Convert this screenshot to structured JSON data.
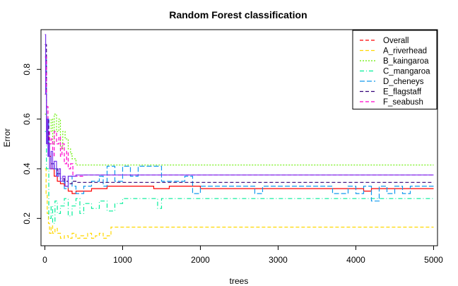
{
  "chart_data": {
    "type": "line",
    "title": "Random Forest classification",
    "xlabel": "trees",
    "ylabel": "Error",
    "xlim": [
      -50,
      5050
    ],
    "ylim": [
      0.09,
      0.96
    ],
    "x_ticks": [
      0,
      1000,
      2000,
      3000,
      4000,
      5000
    ],
    "y_ticks": [
      0.2,
      0.4,
      0.6,
      0.8
    ],
    "x_tick_labels": [
      "0",
      "1000",
      "2000",
      "3000",
      "4000",
      "5000"
    ],
    "y_tick_labels": [
      "0.2",
      "0.4",
      "0.6",
      "0.8"
    ],
    "grid": false,
    "legend_position": "top-right",
    "series": [
      {
        "name": "Overall",
        "color": "#ff0000",
        "dash": "solid",
        "legend_dash": "5,3",
        "x": [
          1,
          20,
          50,
          80,
          120,
          160,
          200,
          250,
          300,
          350,
          400,
          450,
          500,
          600,
          700,
          800,
          900,
          1000,
          1200,
          1400,
          1600,
          1800,
          2000,
          2500,
          3000,
          3500,
          4000,
          4100,
          4200,
          4300,
          4500,
          5000
        ],
        "y": [
          0.7,
          0.55,
          0.45,
          0.4,
          0.37,
          0.35,
          0.34,
          0.33,
          0.31,
          0.3,
          0.31,
          0.31,
          0.31,
          0.32,
          0.32,
          0.33,
          0.33,
          0.33,
          0.33,
          0.32,
          0.33,
          0.33,
          0.32,
          0.32,
          0.32,
          0.32,
          0.32,
          0.31,
          0.32,
          0.32,
          0.32,
          0.32
        ]
      },
      {
        "name": "A_riverhead",
        "color": "#ffd700",
        "dash": "5,3",
        "x": [
          1,
          15,
          30,
          45,
          60,
          80,
          100,
          130,
          160,
          200,
          250,
          300,
          350,
          400,
          450,
          500,
          550,
          600,
          650,
          700,
          750,
          800,
          850,
          1000,
          2000,
          3000,
          4000,
          5000
        ],
        "y": [
          0.4,
          0.3,
          0.22,
          0.18,
          0.14,
          0.17,
          0.14,
          0.16,
          0.14,
          0.12,
          0.13,
          0.12,
          0.14,
          0.12,
          0.13,
          0.12,
          0.14,
          0.12,
          0.13,
          0.14,
          0.12,
          0.13,
          0.165,
          0.165,
          0.165,
          0.165,
          0.165,
          0.165
        ]
      },
      {
        "name": "B_kaingaroa",
        "color": "#66ee00",
        "dash": "2,2",
        "x": [
          1,
          20,
          50,
          80,
          100,
          120,
          150,
          180,
          200,
          230,
          260,
          300,
          330,
          350,
          400,
          1000,
          2000,
          3000,
          4000,
          5000
        ],
        "y": [
          0.62,
          0.5,
          0.55,
          0.6,
          0.5,
          0.62,
          0.55,
          0.6,
          0.48,
          0.55,
          0.52,
          0.48,
          0.46,
          0.44,
          0.415,
          0.415,
          0.415,
          0.415,
          0.415,
          0.415
        ]
      },
      {
        "name": "C_mangaroa",
        "color": "#00ee99",
        "dash": "6,3,1,3",
        "x": [
          1,
          20,
          50,
          80,
          100,
          130,
          160,
          200,
          250,
          300,
          350,
          400,
          450,
          500,
          600,
          700,
          800,
          900,
          1000,
          1400,
          1450,
          1500,
          2000,
          3000,
          4000,
          5000
        ],
        "y": [
          0.55,
          0.4,
          0.2,
          0.25,
          0.18,
          0.27,
          0.22,
          0.25,
          0.28,
          0.21,
          0.25,
          0.28,
          0.22,
          0.26,
          0.24,
          0.27,
          0.23,
          0.26,
          0.28,
          0.28,
          0.24,
          0.28,
          0.28,
          0.28,
          0.28,
          0.28
        ]
      },
      {
        "name": "D_cheneys",
        "color": "#1199ee",
        "dash": "7,3",
        "x": [
          1,
          20,
          50,
          80,
          120,
          160,
          200,
          250,
          300,
          350,
          400,
          500,
          600,
          700,
          750,
          800,
          900,
          1000,
          1100,
          1200,
          1500,
          1800,
          1900,
          2000,
          2500,
          2700,
          2800,
          2900,
          3500,
          3700,
          3900,
          4000,
          4100,
          4200,
          4300,
          4400,
          4500,
          4600,
          4700,
          5000
        ],
        "y": [
          0.85,
          0.6,
          0.45,
          0.42,
          0.4,
          0.37,
          0.35,
          0.32,
          0.37,
          0.33,
          0.3,
          0.33,
          0.35,
          0.37,
          0.33,
          0.41,
          0.35,
          0.41,
          0.37,
          0.41,
          0.35,
          0.37,
          0.3,
          0.33,
          0.33,
          0.3,
          0.33,
          0.33,
          0.33,
          0.3,
          0.33,
          0.3,
          0.33,
          0.27,
          0.33,
          0.3,
          0.33,
          0.3,
          0.33,
          0.33
        ]
      },
      {
        "name": "E_flagstaff",
        "color": "#330077",
        "dash": "5,3",
        "x": [
          1,
          20,
          50,
          80,
          120,
          160,
          200,
          250,
          300,
          350,
          400,
          500,
          1000,
          2000,
          3000,
          4000,
          5000
        ],
        "y": [
          0.9,
          0.6,
          0.45,
          0.42,
          0.4,
          0.38,
          0.36,
          0.35,
          0.34,
          0.35,
          0.345,
          0.345,
          0.345,
          0.345,
          0.345,
          0.345,
          0.345
        ]
      },
      {
        "name": "F_seabush",
        "color": "#ff00cc",
        "dash": "5,3",
        "x": [
          1,
          20,
          40,
          60,
          80,
          100,
          120,
          150,
          180,
          200,
          220,
          250,
          280,
          300,
          330,
          360,
          400,
          500,
          1000,
          2000,
          3000,
          4000,
          5000
        ],
        "y": [
          0.85,
          0.65,
          0.55,
          0.5,
          0.52,
          0.45,
          0.55,
          0.5,
          0.53,
          0.45,
          0.5,
          0.42,
          0.47,
          0.4,
          0.42,
          0.37,
          0.37,
          0.375,
          0.375,
          0.375,
          0.375,
          0.375,
          0.375
        ]
      },
      {
        "name": "",
        "color": "#7733ee",
        "dash": "solid",
        "in_legend": false,
        "x": [
          1,
          10,
          20,
          30,
          40,
          50,
          60,
          80,
          100,
          120,
          150,
          180,
          200,
          230,
          260,
          300,
          350,
          400,
          1000,
          2000,
          3000,
          4000,
          5000
        ],
        "y": [
          0.94,
          0.7,
          0.5,
          0.6,
          0.45,
          0.5,
          0.4,
          0.47,
          0.4,
          0.43,
          0.37,
          0.4,
          0.35,
          0.37,
          0.33,
          0.37,
          0.37,
          0.375,
          0.375,
          0.375,
          0.375,
          0.375,
          0.375
        ]
      }
    ]
  }
}
